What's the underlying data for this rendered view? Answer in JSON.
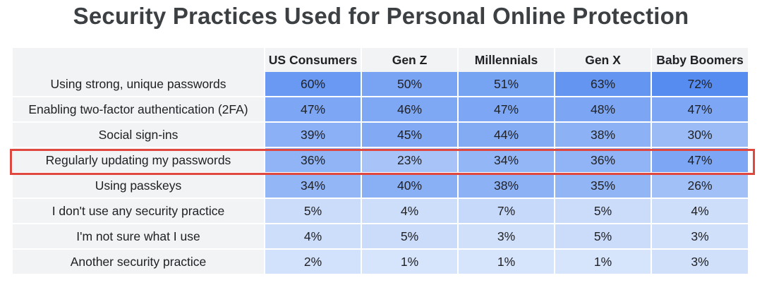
{
  "chart_data": {
    "type": "table",
    "title": "Security Practices Used for Personal Online Protection",
    "columns": [
      "US Consumers",
      "Gen Z",
      "Millennials",
      "Gen X",
      "Baby Boomers"
    ],
    "rows": [
      {
        "label": "Using strong, unique passwords",
        "values": [
          "60%",
          "50%",
          "51%",
          "63%",
          "72%"
        ]
      },
      {
        "label": "Enabling two-factor authentication (2FA)",
        "values": [
          "47%",
          "46%",
          "47%",
          "48%",
          "47%"
        ]
      },
      {
        "label": "Social sign-ins",
        "values": [
          "39%",
          "45%",
          "44%",
          "38%",
          "30%"
        ]
      },
      {
        "label": "Regularly updating my passwords",
        "values": [
          "36%",
          "23%",
          "34%",
          "36%",
          "47%"
        ]
      },
      {
        "label": "Using passkeys",
        "values": [
          "34%",
          "40%",
          "38%",
          "35%",
          "26%"
        ]
      },
      {
        "label": "I don't use any security practice",
        "values": [
          "5%",
          "4%",
          "7%",
          "5%",
          "4%"
        ]
      },
      {
        "label": "I'm not sure what I use",
        "values": [
          "4%",
          "5%",
          "3%",
          "5%",
          "3%"
        ]
      },
      {
        "label": "Another security practice",
        "values": [
          "2%",
          "1%",
          "1%",
          "1%",
          "3%"
        ]
      }
    ],
    "highlighted_row": 3,
    "highlight_color": "#e0483f"
  }
}
